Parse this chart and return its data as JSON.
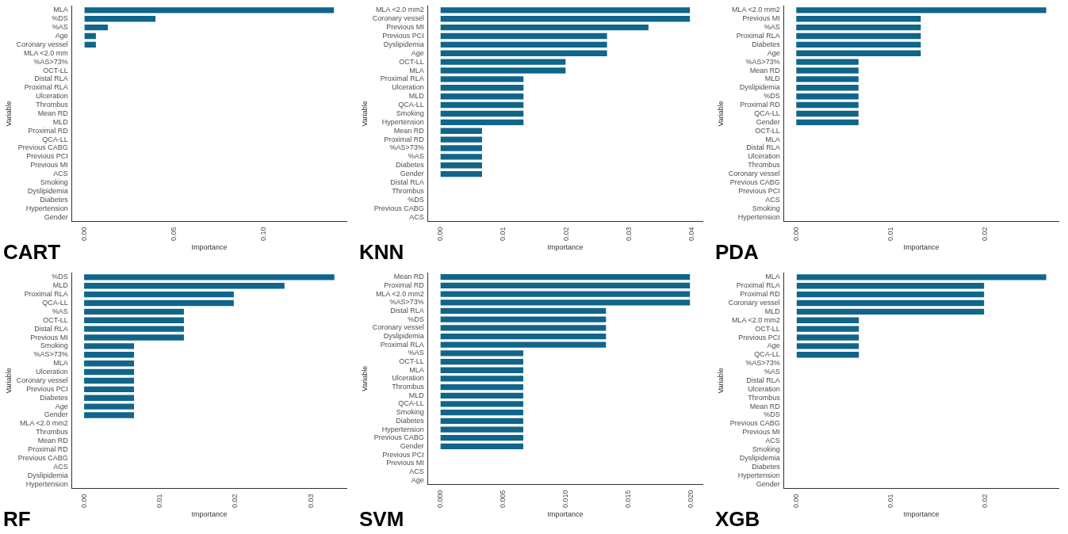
{
  "chart_data": [
    {
      "type": "bar",
      "orientation": "horizontal",
      "title": "CART",
      "xlabel": "Importance",
      "ylabel": "Variable",
      "color": "#10658a",
      "categories": [
        "MLA",
        "%DS",
        "%AS",
        "Age",
        "Coronary vessel",
        "MLA <2.0 mm",
        "%AS>73%",
        "OCT-LL",
        "Distal RLA",
        "Proximal RLA",
        "Ulceration",
        "Thrombus",
        "Mean RD",
        "MLD",
        "Proximal RD",
        "QCA-LL",
        "Previous CABG",
        "Previous PCI",
        "Previous MI",
        "ACS",
        "Smoking",
        "Dyslipidemia",
        "Diabetes",
        "Hypertension",
        "Gender"
      ],
      "values": [
        0.139,
        0.0395,
        0.013,
        0.0063,
        0.0063,
        0,
        0,
        0,
        0,
        0,
        0,
        0,
        0,
        0,
        0,
        0,
        0,
        0,
        0,
        0,
        0,
        0,
        0,
        0,
        0
      ],
      "xlim": [
        -0.007,
        0.146
      ],
      "xticks": [
        {
          "value": 0,
          "label": "0.00"
        },
        {
          "value": 0.05,
          "label": "0.05"
        },
        {
          "value": 0.1,
          "label": "0.10"
        }
      ]
    },
    {
      "type": "bar",
      "orientation": "horizontal",
      "title": "KNN",
      "xlabel": "Importance",
      "ylabel": "Variable",
      "color": "#10658a",
      "categories": [
        "MLA <2.0 mm2",
        "Coronary vessel",
        "Previous MI",
        "Previous PCI",
        "Dyslipidemia",
        "Age",
        "OCT-LL",
        "MLA",
        "Proximal RLA",
        "Ulceration",
        "MLD",
        "QCA-LL",
        "Smoking",
        "Hypertension",
        "Mean RD",
        "Proximal RD",
        "%AS>73%",
        "%AS",
        "Diabetes",
        "Gender",
        "Distal RLA",
        "Thrombus",
        "%DS",
        "Previous CABG",
        "ACS"
      ],
      "values": [
        0.0397,
        0.0397,
        0.0331,
        0.0265,
        0.0265,
        0.0265,
        0.0199,
        0.0199,
        0.0132,
        0.0132,
        0.0132,
        0.0132,
        0.0132,
        0.0132,
        0.0066,
        0.0066,
        0.0066,
        0.0066,
        0.0066,
        0.0066,
        0,
        0,
        0,
        0,
        0
      ],
      "xlim": [
        -0.002,
        0.0417
      ],
      "xticks": [
        {
          "value": 0,
          "label": "0.00"
        },
        {
          "value": 0.01,
          "label": "0.01"
        },
        {
          "value": 0.02,
          "label": "0.02"
        },
        {
          "value": 0.03,
          "label": "0.03"
        },
        {
          "value": 0.04,
          "label": "0.04"
        }
      ]
    },
    {
      "type": "bar",
      "orientation": "horizontal",
      "title": "PDA",
      "xlabel": "Importance",
      "ylabel": "Variable",
      "color": "#10658a",
      "categories": [
        "MLA <2.0 mm2",
        "Previous MI",
        "%AS",
        "Proximal RLA",
        "Diabetes",
        "Age",
        "%AS>73%",
        "Mean RD",
        "MLD",
        "Dyslipidemia",
        "%DS",
        "Proximal RD",
        "QCA-LL",
        "Gender",
        "OCT-LL",
        "MLA",
        "Distal RLA",
        "Ulceration",
        "Thrombus",
        "Coronary vessel",
        "Previous CABG",
        "Previous PCI",
        "ACS",
        "Smoking",
        "Hypertension"
      ],
      "values": [
        0.0265,
        0.0132,
        0.0132,
        0.0132,
        0.0132,
        0.0132,
        0.0066,
        0.0066,
        0.0066,
        0.0066,
        0.0066,
        0.0066,
        0.0066,
        0.0066,
        0,
        0,
        0,
        0,
        0,
        0,
        0,
        0,
        0,
        0,
        0
      ],
      "xlim": [
        -0.0013,
        0.0278
      ],
      "xticks": [
        {
          "value": 0,
          "label": "0.00"
        },
        {
          "value": 0.01,
          "label": "0.01"
        },
        {
          "value": 0.02,
          "label": "0.02"
        }
      ]
    },
    {
      "type": "bar",
      "orientation": "horizontal",
      "title": "RF",
      "xlabel": "Importance",
      "ylabel": "Variable",
      "color": "#10658a",
      "categories": [
        "%DS",
        "MLD",
        "Proximal RLA",
        "QCA-LL",
        "%AS",
        "OCT-LL",
        "Distal RLA",
        "Previous MI",
        "Smoking",
        "%AS>73%",
        "MLA",
        "Ulceration",
        "Coronary vessel",
        "Previous PCI",
        "Diabetes",
        "Age",
        "Gender",
        "MLA <2.0 mm2",
        "Thrombus",
        "Mean RD",
        "Proximal RD",
        "Previous CABG",
        "ACS",
        "Dyslipidemia",
        "Hypertension"
      ],
      "values": [
        0.0331,
        0.0265,
        0.0198,
        0.0198,
        0.0132,
        0.0132,
        0.0132,
        0.0132,
        0.0066,
        0.0066,
        0.0066,
        0.0066,
        0.0066,
        0.0066,
        0.0066,
        0.0066,
        0.0066,
        0,
        0,
        0,
        0,
        0,
        0,
        0,
        0
      ],
      "xlim": [
        -0.0016,
        0.0347
      ],
      "xticks": [
        {
          "value": 0,
          "label": "0.00"
        },
        {
          "value": 0.01,
          "label": "0.01"
        },
        {
          "value": 0.02,
          "label": "0.02"
        },
        {
          "value": 0.03,
          "label": "0.03"
        }
      ]
    },
    {
      "type": "bar",
      "orientation": "horizontal",
      "title": "SVM",
      "xlabel": "Importance",
      "ylabel": "Variable",
      "color": "#10658a",
      "categories": [
        "Mean RD",
        "Proximal RD",
        "MLA <2.0 mm2",
        "%AS>73%",
        "Distal RLA",
        "%DS",
        "Coronary vessel",
        "Dyslipidemia",
        "Proximal RLA",
        "%AS",
        "OCT-LL",
        "MLA",
        "Ulceration",
        "Thrombus",
        "MLD",
        "QCA-LL",
        "Smoking",
        "Diabetes",
        "Hypertension",
        "Previous CABG",
        "Gender",
        "Previous PCI",
        "Previous MI",
        "ACS",
        "Age"
      ],
      "values": [
        0.0199,
        0.0199,
        0.0199,
        0.0199,
        0.0132,
        0.0132,
        0.0132,
        0.0132,
        0.0132,
        0.0066,
        0.0066,
        0.0066,
        0.0066,
        0.0066,
        0.0066,
        0.0066,
        0.0066,
        0.0066,
        0.0066,
        0.0066,
        0.0066,
        0,
        0,
        0,
        0
      ],
      "xlim": [
        -0.001,
        0.0209
      ],
      "xticks": [
        {
          "value": 0,
          "label": "0.000"
        },
        {
          "value": 0.005,
          "label": "0.005"
        },
        {
          "value": 0.01,
          "label": "0.010"
        },
        {
          "value": 0.015,
          "label": "0.015"
        },
        {
          "value": 0.02,
          "label": "0.020"
        }
      ]
    },
    {
      "type": "bar",
      "orientation": "horizontal",
      "title": "XGB",
      "xlabel": "Importance",
      "ylabel": "Variable",
      "color": "#10658a",
      "categories": [
        "MLA",
        "Proximal RLA",
        "Proximal RD",
        "Coronary vessel",
        "MLD",
        "MLA <2.0 mm2",
        "OCT-LL",
        "Previous PCI",
        "Age",
        "QCA-LL",
        "%AS>73%",
        "%AS",
        "Distal RLA",
        "Ulceration",
        "Thrombus",
        "Mean RD",
        "%DS",
        "Previous CABG",
        "Previous MI",
        "ACS",
        "Smoking",
        "Dyslipidemia",
        "Diabetes",
        "Hypertension",
        "Gender"
      ],
      "values": [
        0.0265,
        0.0199,
        0.0199,
        0.0199,
        0.0199,
        0.0066,
        0.0066,
        0.0066,
        0.0066,
        0.0066,
        0,
        0,
        0,
        0,
        0,
        0,
        0,
        0,
        0,
        0,
        0,
        0,
        0,
        0,
        0
      ],
      "xlim": [
        -0.00135,
        0.0278
      ],
      "xticks": [
        {
          "value": 0,
          "label": "0.00"
        },
        {
          "value": 0.01,
          "label": "0.01"
        },
        {
          "value": 0.02,
          "label": "0.02"
        }
      ]
    }
  ]
}
